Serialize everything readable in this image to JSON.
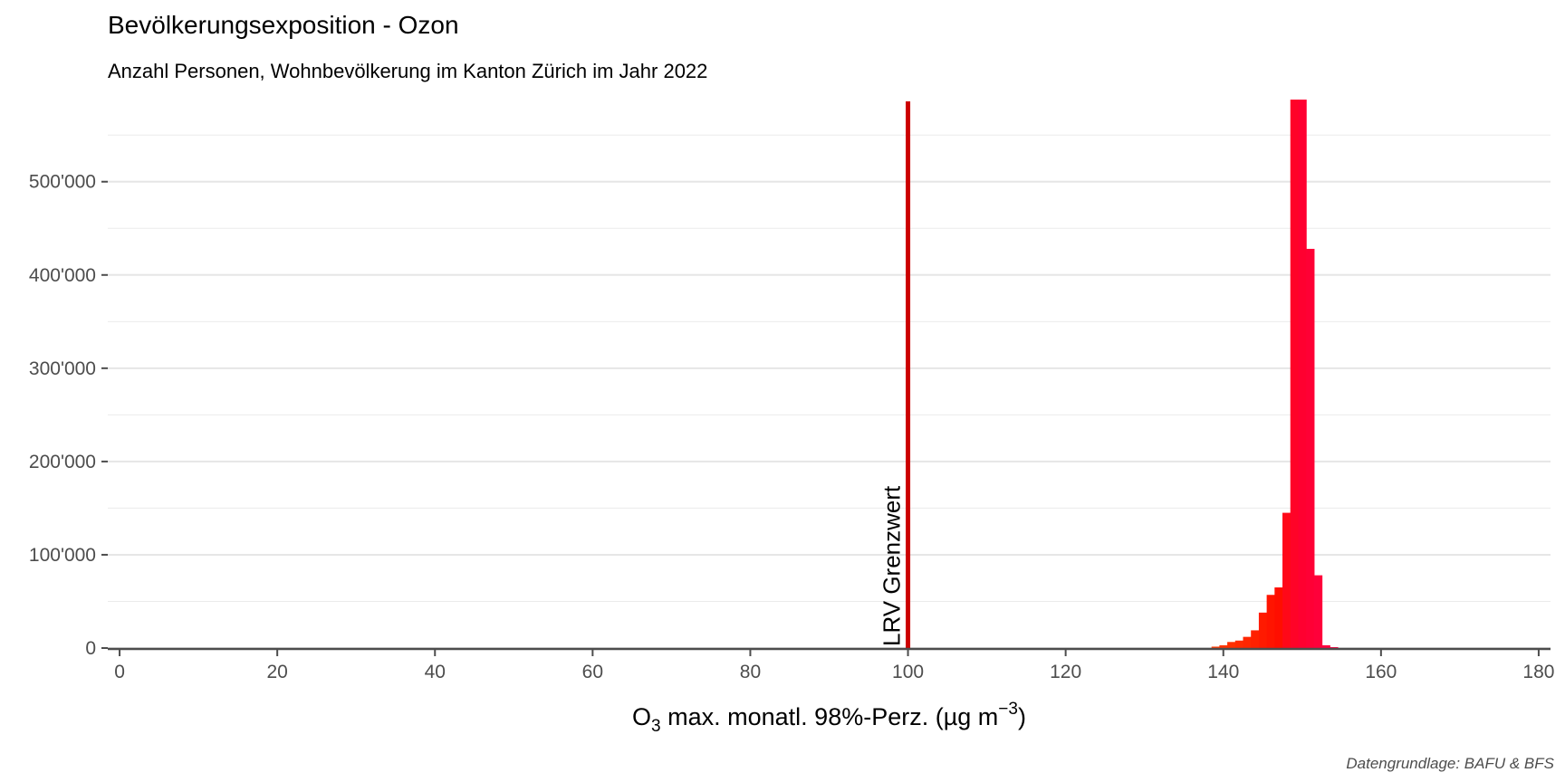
{
  "chart_data": {
    "type": "bar",
    "title": "Bevölkerungsexposition - Ozon",
    "subtitle": "Anzahl Personen, Wohnbevölkerung im Kanton Zürich im Jahr 2022",
    "caption": "Datengrundlage: BAFU & BFS",
    "xlabel": {
      "base": "O",
      "sub": "3",
      "main": " max. monatl. 98%-Perz. (µg m",
      "sup": "−3",
      "tail": ")"
    },
    "ylabel": "",
    "xlim": [
      -1.5,
      181.5
    ],
    "ylim": [
      0,
      590000
    ],
    "x_ticks": [
      0,
      20,
      40,
      60,
      80,
      100,
      120,
      140,
      160,
      180
    ],
    "x_tick_labels": [
      "0",
      "20",
      "40",
      "60",
      "80",
      "100",
      "120",
      "140",
      "160",
      "180"
    ],
    "y_ticks": [
      0,
      100000,
      200000,
      300000,
      400000,
      500000
    ],
    "y_tick_labels": [
      "0",
      "100'000",
      "200'000",
      "300'000",
      "400'000",
      "500'000"
    ],
    "grid": true,
    "legend": "none",
    "bars": [
      {
        "x": 139,
        "value": 1500,
        "color": "#ff3a00"
      },
      {
        "x": 140,
        "value": 3000,
        "color": "#ff3500"
      },
      {
        "x": 141,
        "value": 6500,
        "color": "#ff3000"
      },
      {
        "x": 142,
        "value": 8000,
        "color": "#ff2b00"
      },
      {
        "x": 143,
        "value": 12000,
        "color": "#ff2600"
      },
      {
        "x": 144,
        "value": 19000,
        "color": "#ff2000"
      },
      {
        "x": 145,
        "value": 38000,
        "color": "#ff1a00"
      },
      {
        "x": 146,
        "value": 57000,
        "color": "#ff1400"
      },
      {
        "x": 147,
        "value": 65000,
        "color": "#ff0e00"
      },
      {
        "x": 148,
        "value": 145000,
        "color": "#ff0818"
      },
      {
        "x": 149,
        "value": 588000,
        "color": "#ff0328"
      },
      {
        "x": 150,
        "value": 588000,
        "color": "#ff0030"
      },
      {
        "x": 151,
        "value": 428000,
        "color": "#ff0035"
      },
      {
        "x": 152,
        "value": 78000,
        "color": "#ff003a"
      },
      {
        "x": 153,
        "value": 3000,
        "color": "#ff003e"
      },
      {
        "x": 154,
        "value": 1000,
        "color": "#ff0042"
      }
    ],
    "threshold": {
      "x": 100,
      "label": "LRV Grenzwert",
      "color": "#cc0000"
    }
  }
}
